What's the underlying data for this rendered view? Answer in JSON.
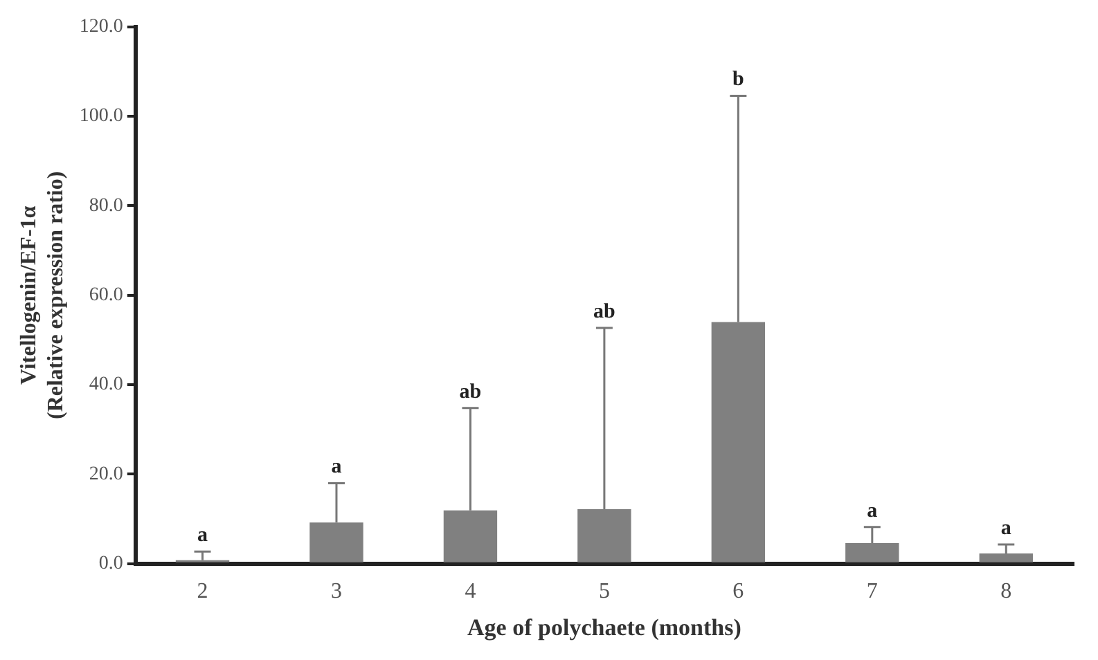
{
  "chart_data": {
    "type": "bar",
    "xlabel": "Age of polychaete (months)",
    "ylabel": "Vitellogenin/EF-1α\n(Relative expression ratio)",
    "categories": [
      "2",
      "3",
      "4",
      "5",
      "6",
      "7",
      "8"
    ],
    "values": [
      0.8,
      9.2,
      11.9,
      12.2,
      54.0,
      4.6,
      2.3
    ],
    "errors": [
      [
        0.8,
        2.7
      ],
      [
        9.2,
        18.0
      ],
      [
        11.9,
        34.8
      ],
      [
        12.2,
        52.7
      ],
      [
        54.0,
        104.6
      ],
      [
        4.6,
        8.2
      ],
      [
        2.3,
        4.3
      ]
    ],
    "color": "#808080",
    "ylim": [
      0,
      120
    ],
    "yticks": [
      {
        "value": 0,
        "label": "0.0"
      },
      {
        "value": 20,
        "label": "20.0"
      },
      {
        "value": 40,
        "label": "40.0"
      },
      {
        "value": 60,
        "label": "60.0"
      },
      {
        "value": 80,
        "label": "80.0"
      },
      {
        "value": 100,
        "label": "100.0"
      },
      {
        "value": 120,
        "label": "120.0"
      }
    ],
    "grid": false,
    "legend": false,
    "annotations": [
      {
        "text": "a",
        "x": "2",
        "y": 2.7
      },
      {
        "text": "a",
        "x": "3",
        "y": 18.0
      },
      {
        "text": "ab",
        "x": "4",
        "y": 34.8
      },
      {
        "text": "ab",
        "x": "5",
        "y": 52.7
      },
      {
        "text": "b",
        "x": "6",
        "y": 104.6
      },
      {
        "text": "a",
        "x": "7",
        "y": 8.2
      },
      {
        "text": "a",
        "x": "8",
        "y": 4.3
      }
    ]
  }
}
